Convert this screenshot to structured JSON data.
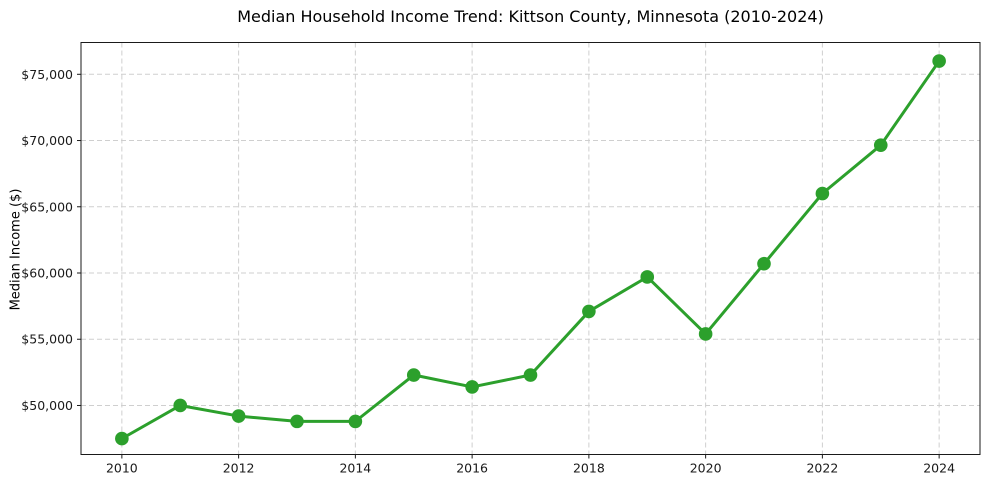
{
  "chart_data": {
    "type": "line",
    "title": "Median Household Income Trend: Kittson County, Minnesota (2010-2024)",
    "xlabel": "",
    "ylabel": "Median Income ($)",
    "series_name": "Median Household Income",
    "x": [
      2010,
      2011,
      2012,
      2013,
      2014,
      2015,
      2016,
      2017,
      2018,
      2019,
      2020,
      2021,
      2022,
      2023,
      2024
    ],
    "values": [
      47500,
      50000,
      49200,
      48800,
      48800,
      52300,
      51400,
      52300,
      57100,
      59700,
      55400,
      60700,
      66000,
      69650,
      76000
    ],
    "line_color": "#2ca02c",
    "marker": "circle",
    "marker_radius": 6.8,
    "line_width": 3,
    "grid": true,
    "grid_style": "dashed",
    "legend": "none",
    "xlim": [
      2009.3,
      2024.7
    ],
    "ylim": [
      46300,
      77400
    ],
    "x_ticks": [
      2010,
      2012,
      2014,
      2016,
      2018,
      2020,
      2022,
      2024
    ],
    "x_tick_labels": [
      "2010",
      "2012",
      "2014",
      "2016",
      "2018",
      "2020",
      "2022",
      "2024"
    ],
    "y_ticks": [
      50000,
      55000,
      60000,
      65000,
      70000,
      75000
    ],
    "y_tick_labels": [
      "$50,000",
      "$55,000",
      "$60,000",
      "$65,000",
      "$70,000",
      "$75,000"
    ]
  }
}
